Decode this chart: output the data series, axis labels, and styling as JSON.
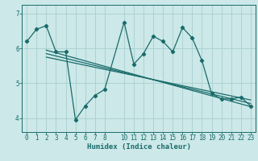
{
  "xlabel": "Humidex (Indice chaleur)",
  "background_color": "#cce8e8",
  "line_color": "#1a6b6b",
  "grid_color": "#aacece",
  "xlim": [
    -0.5,
    23.5
  ],
  "ylim": [
    3.6,
    7.25
  ],
  "yticks": [
    4,
    5,
    6,
    7
  ],
  "xticks": [
    0,
    1,
    2,
    3,
    4,
    5,
    6,
    7,
    8,
    10,
    11,
    12,
    13,
    14,
    15,
    16,
    17,
    18,
    19,
    20,
    21,
    22,
    23
  ],
  "main_line_x": [
    0,
    1,
    2,
    3,
    4,
    5,
    6,
    7,
    8,
    10,
    11,
    12,
    13,
    14,
    15,
    16,
    17,
    18,
    19,
    20,
    21,
    22,
    23
  ],
  "main_line_y": [
    6.2,
    6.55,
    6.65,
    5.9,
    5.9,
    3.95,
    4.35,
    4.65,
    4.82,
    6.75,
    5.55,
    5.85,
    6.35,
    6.2,
    5.9,
    6.6,
    6.3,
    5.65,
    4.7,
    4.55,
    4.55,
    4.6,
    4.35
  ],
  "trend_lines": [
    {
      "x": [
        2,
        23
      ],
      "y": [
        5.95,
        4.33
      ]
    },
    {
      "x": [
        2,
        23
      ],
      "y": [
        5.85,
        4.42
      ]
    },
    {
      "x": [
        2,
        23
      ],
      "y": [
        5.75,
        4.52
      ]
    }
  ],
  "xlabel_fontsize": 6.5,
  "tick_fontsize": 5.5
}
